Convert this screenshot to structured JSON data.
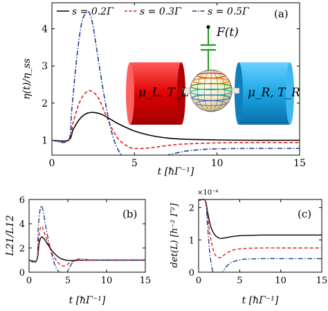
{
  "chart_data": [
    {
      "type": "line",
      "panel_label": "(a)",
      "xlabel": "t [ħΓ⁻¹]",
      "ylabel": "η(t)/η_ss",
      "xlim": [
        0,
        15
      ],
      "ylim": [
        0.6,
        4.7
      ],
      "xticks": [
        0,
        5,
        10,
        15
      ],
      "yticks": [
        1,
        2,
        3,
        4
      ],
      "legend_position": "top",
      "legend": [
        "s = 0.2Γ",
        "s = 0.3Γ",
        "s = 0.5Γ"
      ],
      "inset": {
        "left_reservoir": "μ_L, T_L",
        "right_reservoir": "μ_R, T_R",
        "drive_label": "F(t)"
      },
      "series": [
        {
          "name": "s = 0.2Γ",
          "color": "#000000",
          "dash": "solid",
          "x": [
            0,
            1,
            1.3,
            1.7,
            2.1,
            2.5,
            3.0,
            3.5,
            4,
            5,
            6,
            7,
            8,
            10,
            12,
            15
          ],
          "y": [
            1,
            1,
            1.3,
            1.58,
            1.72,
            1.75,
            1.7,
            1.58,
            1.45,
            1.25,
            1.13,
            1.06,
            1.03,
            1.01,
            1.0,
            1.0
          ]
        },
        {
          "name": "s = 0.3Γ",
          "color": "#e41a1c",
          "dash": "dashed",
          "x": [
            0,
            1,
            1.3,
            1.7,
            2.1,
            2.4,
            2.8,
            3.2,
            3.6,
            4,
            4.5,
            5,
            6,
            7,
            8,
            10,
            12,
            15
          ],
          "y": [
            1,
            1,
            1.5,
            2.05,
            2.3,
            2.32,
            2.15,
            1.75,
            1.35,
            1.05,
            0.86,
            0.78,
            0.8,
            0.86,
            0.9,
            0.93,
            0.94,
            0.94
          ]
        },
        {
          "name": "s = 0.5Γ",
          "color": "#1f3c8f",
          "dash": "dashdot",
          "x": [
            0,
            1,
            1.2,
            1.5,
            1.8,
            2.1,
            2.3,
            2.5,
            2.8,
            3.2,
            3.6,
            4,
            4.5,
            5,
            5.5,
            6,
            7,
            8,
            9,
            10,
            12,
            15
          ],
          "y": [
            1,
            1,
            1.8,
            3.2,
            4.15,
            4.45,
            4.4,
            4.05,
            3.2,
            2.1,
            1.25,
            0.75,
            0.48,
            0.4,
            0.42,
            0.48,
            0.6,
            0.7,
            0.75,
            0.77,
            0.78,
            0.78
          ]
        }
      ]
    },
    {
      "type": "line",
      "panel_label": "(b)",
      "xlabel": "t [ħΓ⁻¹]",
      "ylabel": "L21/L12",
      "xlim": [
        0,
        15
      ],
      "ylim": [
        0,
        6
      ],
      "xticks": [
        0,
        5,
        10,
        15
      ],
      "yticks": [
        0,
        2,
        4,
        6
      ],
      "series": [
        {
          "name": "s = 0.2Γ",
          "color": "#000000",
          "dash": "solid",
          "x": [
            0,
            1,
            1.3,
            1.6,
            2,
            2.4,
            3,
            3.6,
            4.2,
            5,
            6,
            7,
            8,
            10,
            15
          ],
          "y": [
            1,
            1,
            2.4,
            2.9,
            2.7,
            2.3,
            1.75,
            1.35,
            1.1,
            0.98,
            0.97,
            0.99,
            1.0,
            1.0,
            1.0
          ]
        },
        {
          "name": "s = 0.3Γ",
          "color": "#e41a1c",
          "dash": "dashed",
          "x": [
            0,
            1,
            1.3,
            1.6,
            2,
            2.5,
            3,
            3.6,
            4.2,
            4.7,
            5.3,
            6,
            7,
            8,
            10,
            15
          ],
          "y": [
            1,
            1,
            3.1,
            3.8,
            3.2,
            2.3,
            1.5,
            0.9,
            0.55,
            0.55,
            0.8,
            0.95,
            1.0,
            1.0,
            1.0,
            1.0
          ]
        },
        {
          "name": "s = 0.5Γ",
          "color": "#1f3c8f",
          "dash": "dashdot",
          "x": [
            0,
            1,
            1.2,
            1.5,
            1.8,
            2.2,
            2.8,
            3.4,
            4,
            4.6,
            5,
            5.5,
            6.2,
            7,
            8,
            10,
            15
          ],
          "y": [
            1,
            1,
            3.8,
            5.4,
            5.1,
            3.6,
            1.8,
            0.5,
            -0.05,
            -0.2,
            0.1,
            0.7,
            1.05,
            1.08,
            1.0,
            1.0,
            1.0
          ]
        }
      ]
    },
    {
      "type": "line",
      "panel_label": "(c)",
      "xlabel": "t [ħΓ⁻¹]",
      "ylabel": "det(L) [h⁻² Γ²]",
      "exponent_label": "×10⁻⁴",
      "xlim": [
        0,
        15
      ],
      "ylim": [
        0,
        2.25
      ],
      "xticks": [
        0,
        5,
        10,
        15
      ],
      "yticks": [
        0,
        1,
        2
      ],
      "series": [
        {
          "name": "s = 0.2Γ",
          "color": "#000000",
          "dash": "solid",
          "x": [
            0,
            0.8,
            1.1,
            1.5,
            2,
            2.6,
            3.2,
            4,
            5,
            6,
            8,
            10,
            15
          ],
          "y": [
            2.22,
            2.22,
            1.85,
            1.4,
            1.15,
            1.05,
            1.06,
            1.1,
            1.13,
            1.14,
            1.15,
            1.15,
            1.15
          ]
        },
        {
          "name": "s = 0.3Γ",
          "color": "#e41a1c",
          "dash": "dashed",
          "x": [
            0,
            0.8,
            1.1,
            1.5,
            2,
            2.6,
            3.2,
            4,
            5,
            6,
            8,
            10,
            15
          ],
          "y": [
            2.22,
            2.22,
            1.7,
            1.0,
            0.55,
            0.45,
            0.55,
            0.67,
            0.72,
            0.74,
            0.75,
            0.75,
            0.75
          ]
        },
        {
          "name": "s = 0.5Γ",
          "color": "#1f3c8f",
          "dash": "dashdot",
          "x": [
            0,
            0.8,
            1.1,
            1.4,
            1.8,
            2.2,
            2.7,
            3.3,
            4,
            5,
            6,
            8,
            10,
            15
          ],
          "y": [
            2.22,
            2.22,
            1.4,
            0.5,
            -0.05,
            -0.2,
            -0.1,
            0.15,
            0.3,
            0.38,
            0.41,
            0.42,
            0.42,
            0.42
          ]
        }
      ]
    }
  ]
}
